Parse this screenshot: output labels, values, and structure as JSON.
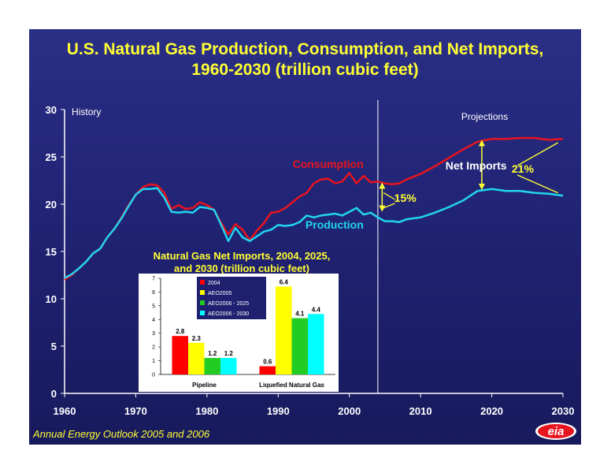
{
  "title_line1": "U.S. Natural Gas Production, Consumption, and Net Imports,",
  "title_line2": "1960-2030 (trillion cubic feet)",
  "footer": "Annual Energy Outlook 2005 and 2006",
  "logo_text": "eia",
  "colors": {
    "background": "#1f2170",
    "title": "#ffff33",
    "consumption": "#e8141e",
    "production": "#22d4f0",
    "arrow": "#ffff33"
  },
  "chart_data": [
    {
      "type": "line",
      "xlim": [
        1960,
        2030
      ],
      "ylim": [
        0,
        30
      ],
      "x_ticks": [
        "1960",
        "1970",
        "1980",
        "1990",
        "2000",
        "2010",
        "2020",
        "2030"
      ],
      "y_ticks": [
        "0",
        "5",
        "10",
        "15",
        "20",
        "25",
        "30"
      ],
      "grid": false,
      "annotations": {
        "history": "History",
        "projections": "Projections",
        "net_imports": "Net Imports",
        "pct_2004": "15%",
        "pct_2030": "21%",
        "divider_year": 2004
      },
      "series": [
        {
          "name": "Consumption",
          "color": "#e8141e",
          "points": [
            [
              1960,
              12
            ],
            [
              1961,
              12.5
            ],
            [
              1962,
              13.2
            ],
            [
              1963,
              13.9
            ],
            [
              1964,
              14.8
            ],
            [
              1965,
              15.3
            ],
            [
              1966,
              16.5
            ],
            [
              1967,
              17.4
            ],
            [
              1968,
              18.6
            ],
            [
              1969,
              19.9
            ],
            [
              1970,
              21
            ],
            [
              1971,
              21.8
            ],
            [
              1972,
              22.1
            ],
            [
              1973,
              22
            ],
            [
              1974,
              21.2
            ],
            [
              1975,
              19.5
            ],
            [
              1976,
              19.9
            ],
            [
              1977,
              19.5
            ],
            [
              1978,
              19.6
            ],
            [
              1979,
              20.2
            ],
            [
              1980,
              19.9
            ],
            [
              1981,
              19.4
            ],
            [
              1982,
              18
            ],
            [
              1983,
              16.8
            ],
            [
              1984,
              17.9
            ],
            [
              1985,
              17.3
            ],
            [
              1986,
              16.2
            ],
            [
              1987,
              17.2
            ],
            [
              1988,
              18
            ],
            [
              1989,
              19.1
            ],
            [
              1990,
              19.2
            ],
            [
              1991,
              19.6
            ],
            [
              1992,
              20.2
            ],
            [
              1993,
              20.8
            ],
            [
              1994,
              21.2
            ],
            [
              1995,
              22.2
            ],
            [
              1996,
              22.6
            ],
            [
              1997,
              22.7
            ],
            [
              1998,
              22.2
            ],
            [
              1999,
              22.4
            ],
            [
              2000,
              23.3
            ],
            [
              2001,
              22.2
            ],
            [
              2002,
              23
            ],
            [
              2003,
              22.3
            ],
            [
              2004,
              22.4
            ],
            [
              2005,
              22.2
            ],
            [
              2006,
              22.1
            ],
            [
              2007,
              22.2
            ],
            [
              2008,
              22.6
            ],
            [
              2009,
              22.9
            ],
            [
              2010,
              23.2
            ],
            [
              2012,
              24
            ],
            [
              2014,
              24.9
            ],
            [
              2016,
              25.8
            ],
            [
              2018,
              26.6
            ],
            [
              2020,
              26.9
            ],
            [
              2022,
              26.9
            ],
            [
              2024,
              27
            ],
            [
              2026,
              27
            ],
            [
              2028,
              26.8
            ],
            [
              2030,
              26.9
            ]
          ]
        },
        {
          "name": "Production",
          "color": "#22d4f0",
          "points": [
            [
              1960,
              12.2
            ],
            [
              1961,
              12.6
            ],
            [
              1962,
              13.2
            ],
            [
              1963,
              13.9
            ],
            [
              1964,
              14.8
            ],
            [
              1965,
              15.3
            ],
            [
              1966,
              16.5
            ],
            [
              1967,
              17.4
            ],
            [
              1968,
              18.5
            ],
            [
              1969,
              19.8
            ],
            [
              1970,
              21
            ],
            [
              1971,
              21.6
            ],
            [
              1972,
              21.6
            ],
            [
              1973,
              21.7
            ],
            [
              1974,
              20.7
            ],
            [
              1975,
              19.2
            ],
            [
              1976,
              19.1
            ],
            [
              1977,
              19.2
            ],
            [
              1978,
              19.1
            ],
            [
              1979,
              19.7
            ],
            [
              1980,
              19.6
            ],
            [
              1981,
              19.4
            ],
            [
              1982,
              17.8
            ],
            [
              1983,
              16.1
            ],
            [
              1984,
              17.5
            ],
            [
              1985,
              16.5
            ],
            [
              1986,
              16.1
            ],
            [
              1987,
              16.6
            ],
            [
              1988,
              17.1
            ],
            [
              1989,
              17.3
            ],
            [
              1990,
              17.8
            ],
            [
              1991,
              17.7
            ],
            [
              1992,
              17.8
            ],
            [
              1993,
              18.1
            ],
            [
              1994,
              18.8
            ],
            [
              1995,
              18.6
            ],
            [
              1996,
              18.8
            ],
            [
              1997,
              18.9
            ],
            [
              1998,
              19
            ],
            [
              1999,
              18.8
            ],
            [
              2000,
              19.2
            ],
            [
              2001,
              19.6
            ],
            [
              2002,
              18.9
            ],
            [
              2003,
              19.1
            ],
            [
              2004,
              18.6
            ],
            [
              2005,
              18.2
            ],
            [
              2006,
              18.2
            ],
            [
              2007,
              18.1
            ],
            [
              2008,
              18.4
            ],
            [
              2009,
              18.5
            ],
            [
              2010,
              18.6
            ],
            [
              2012,
              19.1
            ],
            [
              2014,
              19.7
            ],
            [
              2016,
              20.4
            ],
            [
              2018,
              21.4
            ],
            [
              2020,
              21.6
            ],
            [
              2022,
              21.4
            ],
            [
              2024,
              21.4
            ],
            [
              2026,
              21.2
            ],
            [
              2028,
              21.1
            ],
            [
              2030,
              20.9
            ]
          ]
        }
      ]
    },
    {
      "type": "bar",
      "title_line1": "Natural Gas Net Imports, 2004, 2025,",
      "title_line2": "and 2030 (trillion cubic feet)",
      "categories": [
        "Pipeline",
        "Liquefied Natural Gas"
      ],
      "ylim": [
        0,
        7
      ],
      "y_ticks": [
        "0",
        "1",
        "2",
        "3",
        "4",
        "5",
        "6",
        "7"
      ],
      "series": [
        {
          "name": "2004",
          "color": "#ff0000",
          "values": [
            2.8,
            0.6
          ],
          "labels": [
            "2.8",
            "0.6"
          ]
        },
        {
          "name": "AEO2005",
          "color": "#ffff00",
          "values": [
            2.3,
            6.4
          ],
          "labels": [
            "2.3",
            "6.4"
          ]
        },
        {
          "name": "AEO2006 - 2025",
          "color": "#22cc22",
          "values": [
            1.2,
            4.1
          ],
          "labels": [
            "1.2",
            "4.1"
          ]
        },
        {
          "name": "AEO2006 - 2030",
          "color": "#00ffff",
          "values": [
            1.2,
            4.4
          ],
          "labels": [
            "1.2",
            "4.4"
          ]
        }
      ]
    }
  ]
}
